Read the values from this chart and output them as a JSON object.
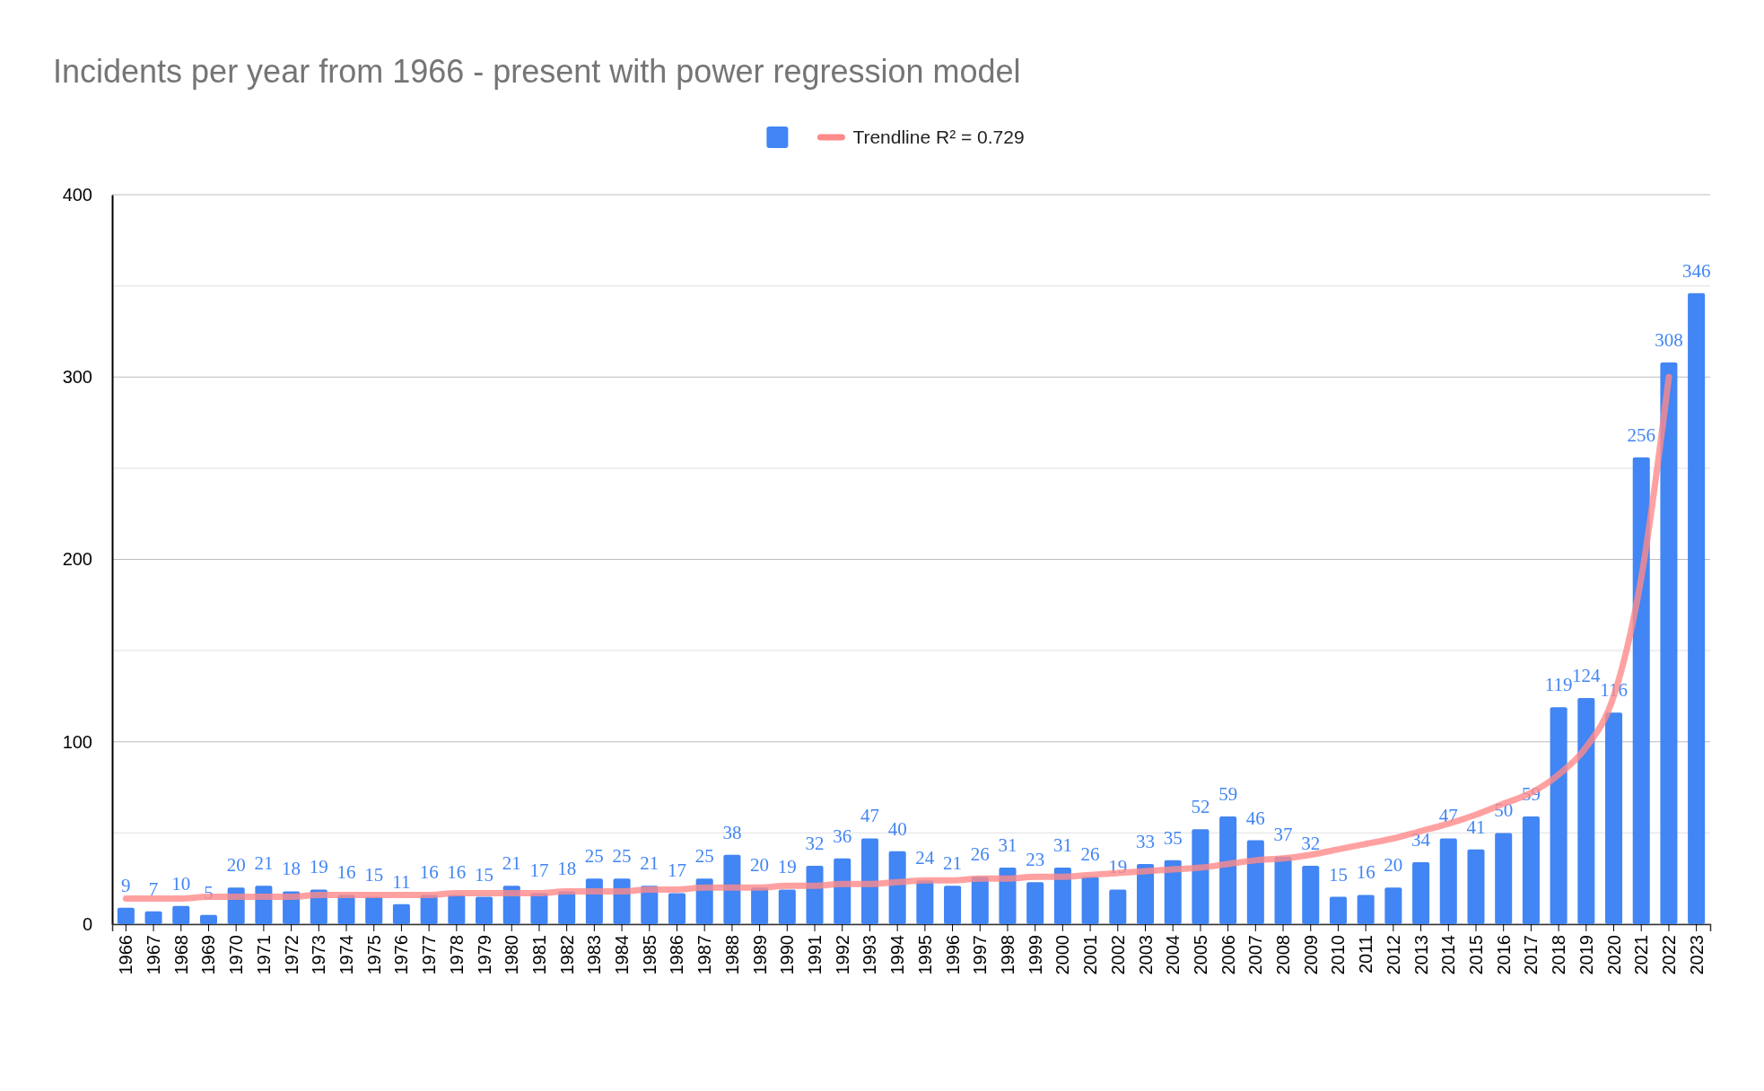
{
  "chart_data": {
    "type": "bar",
    "title": "Incidents per year from 1966 - present with power regression model",
    "categories": [
      "1966",
      "1967",
      "1968",
      "1969",
      "1970",
      "1971",
      "1972",
      "1973",
      "1974",
      "1975",
      "1976",
      "1977",
      "1978",
      "1979",
      "1980",
      "1981",
      "1982",
      "1983",
      "1984",
      "1985",
      "1986",
      "1987",
      "1988",
      "1989",
      "1990",
      "1991",
      "1992",
      "1993",
      "1994",
      "1995",
      "1996",
      "1997",
      "1998",
      "1999",
      "2000",
      "2001",
      "2002",
      "2003",
      "2004",
      "2005",
      "2006",
      "2007",
      "2008",
      "2009",
      "2010",
      "2011",
      "2012",
      "2013",
      "2014",
      "2015",
      "2016",
      "2017",
      "2018",
      "2019",
      "2020",
      "2021",
      "2022",
      "2023"
    ],
    "series": [
      {
        "color": "#4285f4",
        "values": [
          9,
          7,
          10,
          5,
          20,
          21,
          18,
          19,
          16,
          15,
          11,
          16,
          16,
          15,
          21,
          17,
          18,
          25,
          25,
          21,
          17,
          25,
          38,
          20,
          19,
          32,
          36,
          47,
          40,
          24,
          21,
          26,
          31,
          23,
          31,
          26,
          19,
          33,
          35,
          52,
          59,
          46,
          37,
          32,
          15,
          16,
          20,
          34,
          47,
          41,
          50,
          59,
          119,
          124,
          116,
          256,
          308,
          346
        ],
        "value_labels": [
          "9",
          "7",
          "10",
          "5",
          "20",
          "21",
          "18",
          "19",
          "16",
          "15",
          "11",
          "16",
          "16",
          "15",
          "21",
          "17",
          "18",
          "25",
          "25",
          "21",
          "17",
          "25",
          "38",
          "20",
          "19",
          "32",
          "36",
          "47",
          "40",
          "24",
          "21",
          "26",
          "31",
          "23",
          "31",
          "26",
          "19",
          "33",
          "35",
          "52",
          "59",
          "46",
          "37",
          "32",
          "15",
          "16",
          "20",
          "34",
          "47",
          "41",
          "50",
          "59",
          "119",
          "124",
          "116",
          "256",
          "308",
          "346"
        ]
      },
      {
        "type": "line",
        "name": "Trendline R² = 0.729",
        "color": "#ff8a8a",
        "values": [
          14,
          14,
          14,
          15,
          15,
          15,
          15,
          16,
          16,
          16,
          16,
          16,
          17,
          17,
          17,
          17,
          18,
          18,
          18,
          19,
          19,
          20,
          20,
          20,
          21,
          21,
          22,
          22,
          23,
          24,
          24,
          25,
          25,
          26,
          26,
          27,
          28,
          29,
          30,
          31,
          33,
          35,
          36,
          38,
          41,
          44,
          47,
          51,
          55,
          60,
          66,
          72,
          82,
          97,
          125,
          190,
          300,
          null
        ]
      }
    ],
    "ylim": [
      0,
      400
    ],
    "yticks": [
      0,
      {
        "value": 50,
        "label": null
      },
      100,
      {
        "value": 150,
        "label": null
      },
      200,
      {
        "value": 250,
        "label": null
      },
      300,
      {
        "value": 350,
        "label": null
      },
      400
    ],
    "grid": "y",
    "legend": "top"
  }
}
